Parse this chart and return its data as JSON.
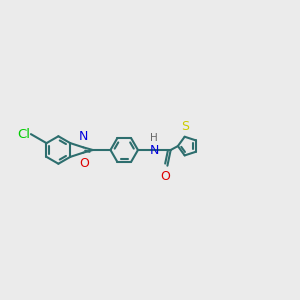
{
  "bg_color": "#ebebeb",
  "bond_color": "#2d6e6e",
  "bond_width": 1.5,
  "atom_colors": {
    "Cl": "#00cc00",
    "N": "#0000dd",
    "O": "#dd0000",
    "S": "#cccc00",
    "H": "#666666"
  },
  "font_size": 8.5,
  "fig_width": 3.0,
  "fig_height": 3.0,
  "dpi": 100
}
